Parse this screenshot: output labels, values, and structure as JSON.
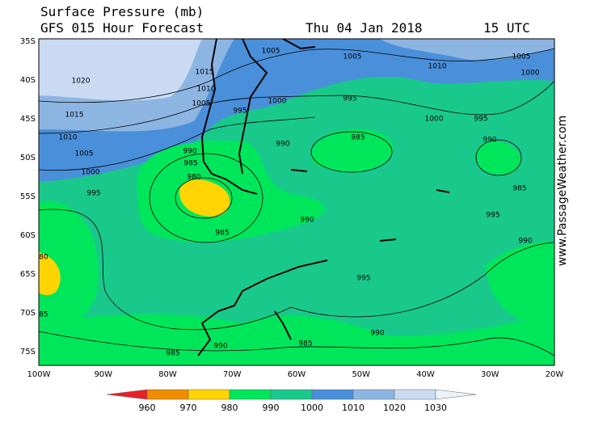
{
  "header": {
    "title": "Surface Pressure (mb)",
    "subtitle": "GFS 015 Hour Forecast",
    "date": "Thu 04 Jan 2018",
    "time": "15 UTC"
  },
  "map": {
    "lat_labels": [
      "35S",
      "40S",
      "45S",
      "50S",
      "55S",
      "60S",
      "65S",
      "70S",
      "75S"
    ],
    "lon_labels": [
      "100W",
      "90W",
      "80W",
      "70W",
      "60W",
      "50W",
      "40W",
      "30W",
      "20W"
    ],
    "contour_labels": [
      "1005",
      "1005",
      "1010",
      "1005",
      "1000",
      "1020",
      "1015",
      "1010",
      "1005",
      "1000",
      "995",
      "995",
      "1015",
      "1000",
      "995",
      "1010",
      "990",
      "985",
      "990",
      "1005",
      "990",
      "985",
      "980",
      "1000",
      "995",
      "985",
      "995",
      "990",
      "985",
      "990",
      "995",
      "990",
      "990",
      "985",
      "985",
      "80",
      "85"
    ]
  },
  "legend": {
    "levels": [
      "960",
      "970",
      "980",
      "990",
      "1000",
      "1010",
      "1020",
      "1030"
    ],
    "colors": [
      "#e8202a",
      "#f08c00",
      "#ffd400",
      "#00e65a",
      "#19c98c",
      "#4a8fd9",
      "#8db5e2",
      "#c9daf2",
      "#eef3fb"
    ]
  },
  "credit": "www.PassageWeather.com"
}
